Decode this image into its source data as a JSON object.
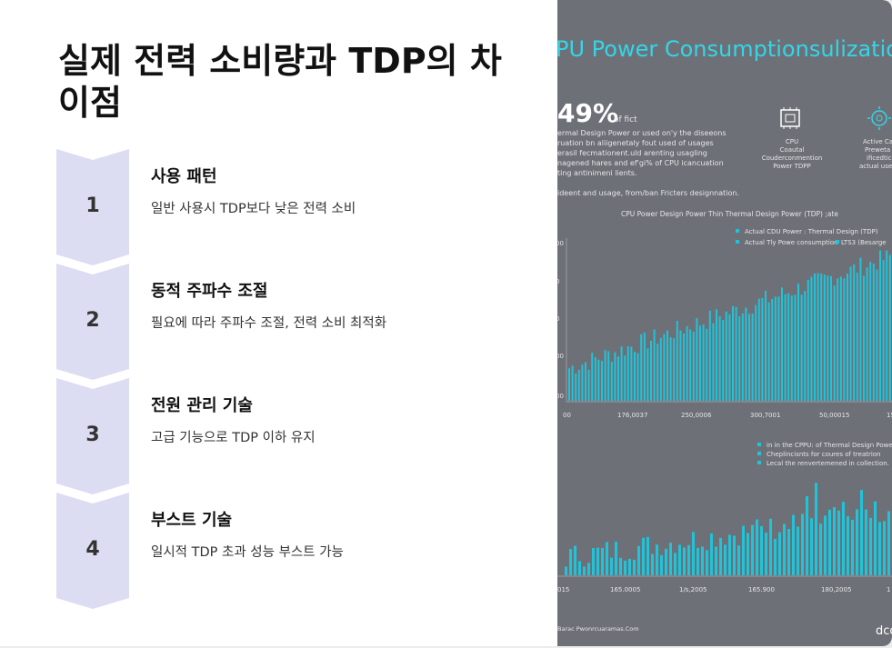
{
  "title": "실제 전력 소비량과 TDP의 차이점",
  "steps": [
    {
      "number": "1",
      "heading": "사용 패턴",
      "description": "일반 사용시 TDP보다 낮은 전력 소비"
    },
    {
      "number": "2",
      "heading": "동적 주파수 조절",
      "description": "필요에 따라 주파수 조절, 전력 소비 최적화"
    },
    {
      "number": "3",
      "heading": "전원 관리 기술",
      "description": "고급 기능으로 TDP 이하 유지"
    },
    {
      "number": "4",
      "heading": "부스트 기술",
      "description": "일시적 TDP 초과 성능 부스트 가능"
    }
  ],
  "image": {
    "headline": "PU Power Consumptionsulization",
    "big_stat": "49%",
    "big_stat_suffix": "of fict",
    "intro_lines": [
      "ermal Design Power or used on'y the diseeons",
      "ruation bn aliigenetaly fout used of usages",
      "erasil fecmationent.uld arenting usagling",
      "nagened hares and ef'gi% of CPU icancuation",
      "ting antinimeni lients."
    ],
    "icon1_lines": [
      "CPU",
      "Coautal",
      "Couderconmention",
      "Power TDPP"
    ],
    "icon2_lines": [
      "Active Ca",
      "Preweta",
      "ificedtic",
      "actual use"
    ],
    "subline": "ideent and usage, from/ban Fricters designnation.",
    "chart1_title": "CPU Power Design Power Thin Thermal Design Power (TDP) ;ate",
    "chart1_legend": [
      "Actual CDU Power : Thermal Design (TDP)",
      "Actual Tly Powe consumption",
      "LTS3 (Besarge"
    ],
    "chart1_xticks": [
      "00",
      "176,0037",
      "250,0006",
      "300,7001",
      "50,00015",
      "15"
    ],
    "chart1_yticks": [
      "00",
      "0",
      "0",
      "00",
      "00",
      "0"
    ],
    "chart2_legend": [
      "in in the CPPU: of Thermal Design Powe",
      "Cheplincisnts for coures of treatrion",
      "Lecal the renvertemened in collection."
    ],
    "chart2_xticks": [
      "015",
      "165.0005",
      "1/s,2005",
      "165.900",
      "180,2005",
      "1"
    ],
    "footer_left": "Barac Pwonrcuaramas.Com",
    "footer_right": "dco",
    "colors": {
      "bar": "#1fc4d8",
      "panel": "#6e7078",
      "chevron": "#dcdcf2"
    }
  }
}
